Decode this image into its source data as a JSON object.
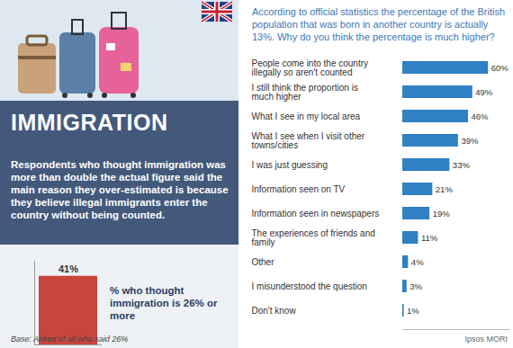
{
  "chart_data": [
    {
      "type": "bar",
      "title": "IMMIGRATION",
      "subtitle": "Respondents who thought immigration was more than double the actual figure said the main reason they over-estimated is because they believe illegal immigrants enter the country without being counted.",
      "categories": [
        null
      ],
      "values": [
        41
      ],
      "value_labels": [
        "41%"
      ],
      "data_labels": true,
      "color": "#c8453c",
      "ylim": [
        0,
        50
      ],
      "yticks": [],
      "tick_labels": false,
      "annotations": [
        "% who thought immigration is 26% or more",
        "Base: Asked of all who said 26%"
      ]
    },
    {
      "type": "bar",
      "orientation": "horizontal",
      "title": "According to official statistics the percentage of the British population that was born in another country is actually 13%. Why do you think the percentage is much higher?",
      "categories": [
        "People come into the country illegally so aren't counted",
        "I still think the proportion is much higher",
        "What I see in my local area",
        "What I see when I visit other towns/cities",
        "I was just guessing",
        "Information seen on TV",
        "Information seen in newspapers",
        "The experiences of friends and family",
        "Other",
        "I misunderstood the question",
        "Don't know"
      ],
      "values": [
        60,
        49,
        46,
        39,
        33,
        21,
        19,
        11,
        4,
        3,
        1
      ],
      "value_labels": [
        "60%",
        "49%",
        "46%",
        "39%",
        "33%",
        "21%",
        "19%",
        "11%",
        "4%",
        "3%",
        "1%"
      ],
      "data_labels": true,
      "color": "#2f80c4",
      "xlim": [
        0,
        75
      ],
      "xticks": [],
      "tick_labels": "y",
      "annotations": [
        "Ipsos MORI"
      ]
    }
  ]
}
